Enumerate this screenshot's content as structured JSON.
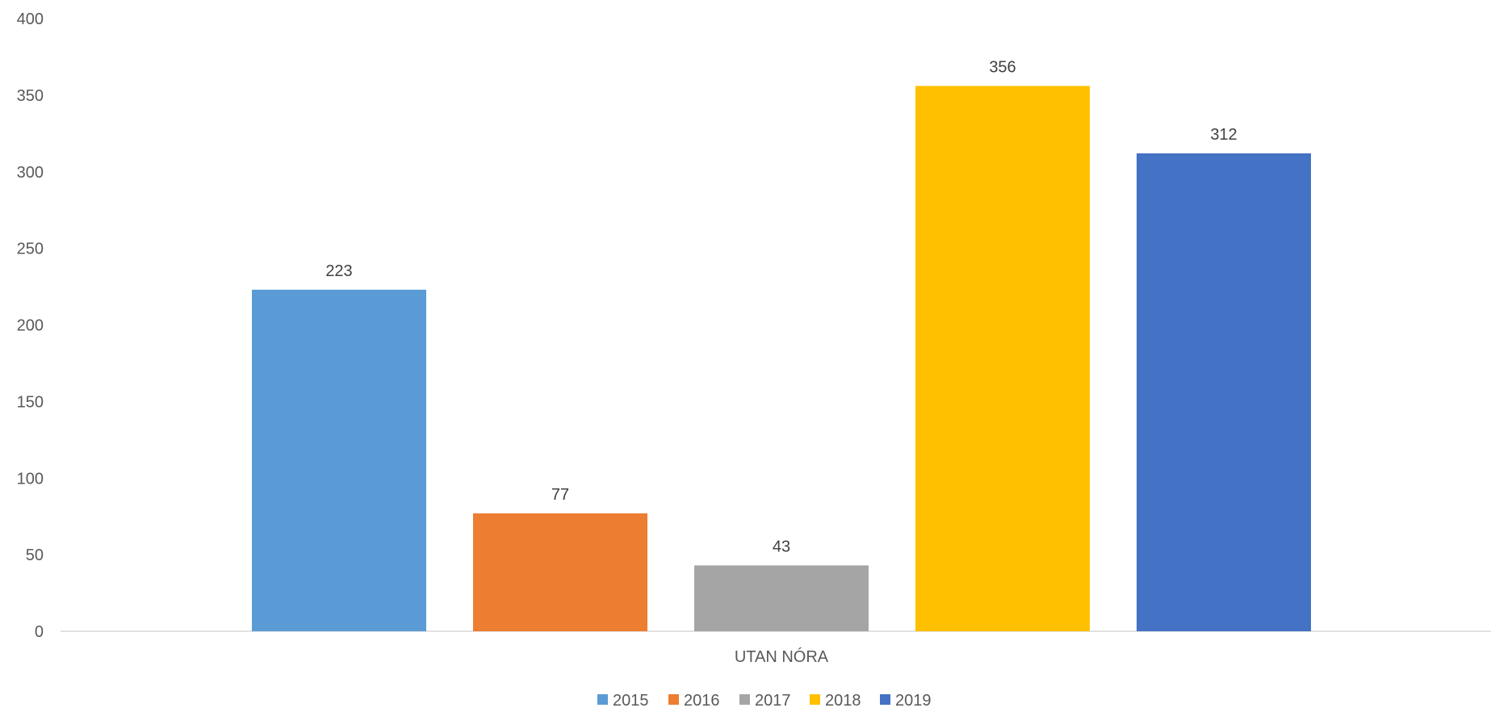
{
  "chart_data": {
    "type": "bar",
    "title": "",
    "xlabel": "",
    "ylabel": "",
    "categories": [
      "UTAN NÓRA"
    ],
    "series": [
      {
        "name": "2015",
        "values": [
          223
        ],
        "color": "#5B9BD5"
      },
      {
        "name": "2016",
        "values": [
          77
        ],
        "color": "#ED7D31"
      },
      {
        "name": "2017",
        "values": [
          43
        ],
        "color": "#A5A5A5"
      },
      {
        "name": "2018",
        "values": [
          356
        ],
        "color": "#FFC000"
      },
      {
        "name": "2019",
        "values": [
          312
        ],
        "color": "#4472C4"
      }
    ],
    "ylim": [
      0,
      400
    ],
    "yticks": [
      "0",
      "50",
      "100",
      "150",
      "200",
      "250",
      "300",
      "350",
      "400"
    ],
    "grid": false,
    "data_labels": true,
    "legend": "bottom-center"
  }
}
